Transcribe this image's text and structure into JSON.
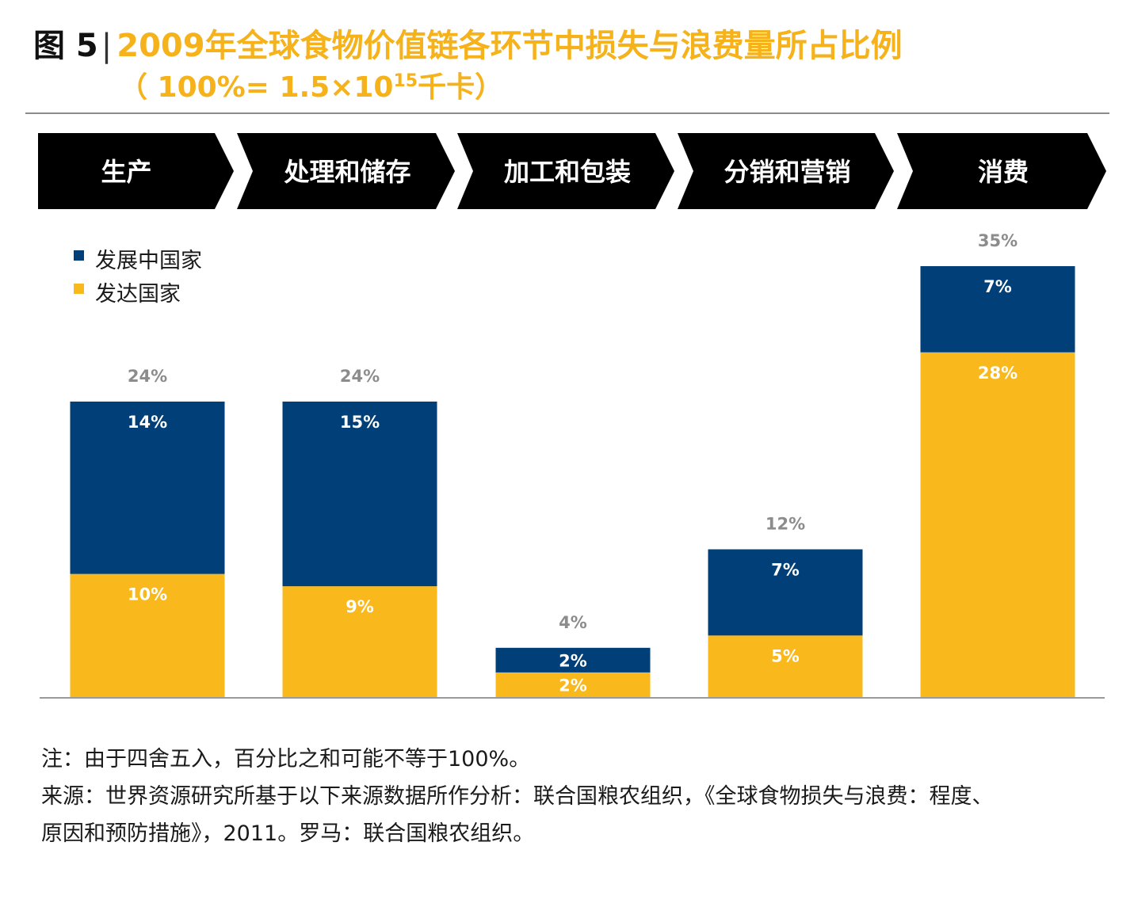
{
  "title": {
    "figure_label": "图 5",
    "separator": "|",
    "main": "2009年全球食物价值链各环节中损失与浪费量所占比例",
    "subtitle_prefix": "（ 100%= 1.5×10",
    "subtitle_exponent": "15",
    "subtitle_suffix": "千卡）"
  },
  "chart_data": {
    "type": "bar",
    "stacked": true,
    "categories": [
      "生产",
      "处理和储存",
      "加工和包装",
      "分销和营销",
      "消费"
    ],
    "series": [
      {
        "name": "发达国家",
        "color": "#f9b81b",
        "values": [
          10,
          9,
          2,
          5,
          28
        ],
        "labels": [
          "10%",
          "9%",
          "2%",
          "5%",
          "28%"
        ]
      },
      {
        "name": "发展中国家",
        "color": "#003f77",
        "values": [
          14,
          15,
          2,
          7,
          7
        ],
        "labels": [
          "14%",
          "15%",
          "2%",
          "7%",
          "7%"
        ]
      }
    ],
    "totals": [
      24,
      24,
      4,
      12,
      35
    ],
    "total_labels": [
      "24%",
      "24%",
      "4%",
      "12%",
      "35%"
    ],
    "legend": [
      {
        "name": "发展中国家",
        "color": "#003f77"
      },
      {
        "name": "发达国家",
        "color": "#f9b81b"
      }
    ],
    "legend_position": "top-left",
    "ylim": [
      0,
      35
    ],
    "grid": false,
    "header_chevrons": true
  },
  "colors": {
    "accent": "#f5b21b",
    "developing": "#003f77",
    "developed": "#f9b81b",
    "chevron": "#000000",
    "total_label": "#8c8c8c"
  },
  "notes": {
    "note": "注：由于四舍五入，百分比之和可能不等于100%。",
    "source_line1": "来源：世界资源研究所基于以下来源数据所作分析：联合国粮农组织，《全球食物损失与浪费：程度、",
    "source_line2": "原因和预防措施》，2011。罗马：联合国粮农组织。"
  }
}
